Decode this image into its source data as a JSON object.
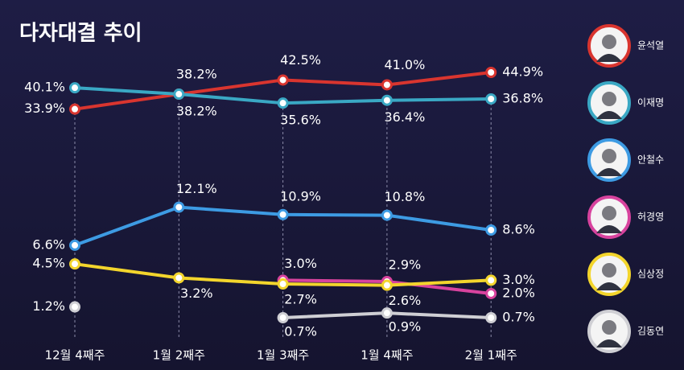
{
  "chart_data": {
    "type": "line",
    "title": "다자대결 추이",
    "categories": [
      "12월 4째주",
      "1월 2째주",
      "1월 3째주",
      "1월 4째주",
      "2월 1째주"
    ],
    "series": [
      {
        "name": "윤석열",
        "color": "#d9352f",
        "values": [
          33.9,
          38.2,
          42.5,
          41.0,
          44.9
        ],
        "value_labels": [
          "33.9%",
          "38.2%",
          "42.5%",
          "41.0%",
          "44.9%"
        ]
      },
      {
        "name": "이재명",
        "color": "#3aa8c4",
        "values": [
          40.1,
          38.2,
          35.6,
          36.4,
          36.8
        ],
        "value_labels": [
          "40.1%",
          "38.2%",
          "35.6%",
          "36.4%",
          "36.8%"
        ]
      },
      {
        "name": "안철수",
        "color": "#3d9be3",
        "values": [
          6.6,
          12.1,
          10.9,
          10.8,
          8.6
        ],
        "value_labels": [
          "6.6%",
          "12.1%",
          "10.9%",
          "10.8%",
          "8.6%"
        ]
      },
      {
        "name": "허경영",
        "color": "#d8439e",
        "values": [
          null,
          null,
          3.0,
          2.9,
          2.0
        ],
        "value_labels": [
          null,
          null,
          "3.0%",
          "2.9%",
          "2.0%"
        ]
      },
      {
        "name": "심상정",
        "color": "#f3d52c",
        "values": [
          4.5,
          3.2,
          2.7,
          2.6,
          3.0
        ],
        "value_labels": [
          "4.5%",
          "3.2%",
          "2.7%",
          "2.6%",
          "3.0%"
        ]
      },
      {
        "name": "김동연",
        "color": "#cfcfd4",
        "values": [
          1.2,
          null,
          0.7,
          0.9,
          0.7
        ],
        "value_labels": [
          "1.2%",
          null,
          "0.7%",
          "0.9%",
          "0.7%"
        ]
      }
    ]
  }
}
